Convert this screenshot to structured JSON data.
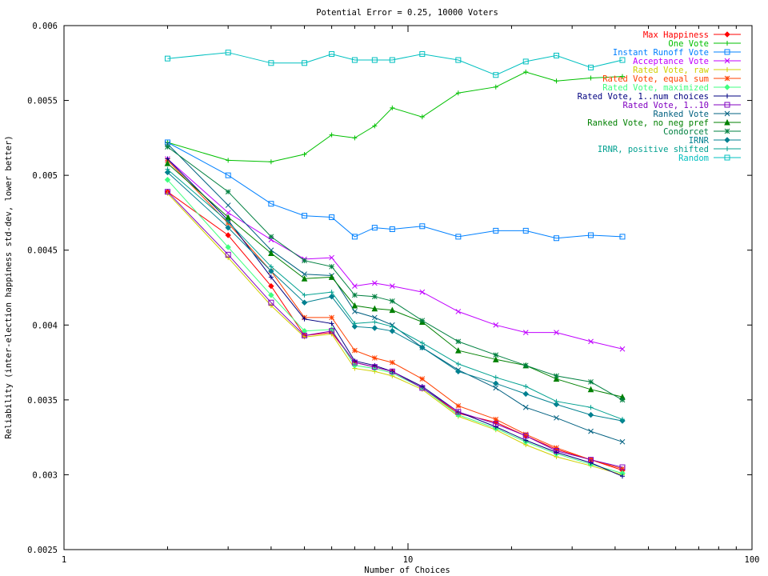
{
  "chart_data": {
    "type": "line",
    "title": "Potential Error = 0.25, 10000 Voters",
    "xlabel": "Number of Choices",
    "ylabel": "Reliability (inter-election happiness std-dev, lower better)",
    "x_scale": "log",
    "xlim": [
      1,
      100
    ],
    "ylim": [
      0.0025,
      0.006
    ],
    "x_ticks": [
      1,
      10,
      100
    ],
    "x_tick_labels": [
      "1",
      "10",
      "100"
    ],
    "y_ticks": [
      0.0025,
      0.003,
      0.0035,
      0.004,
      0.0045,
      0.005,
      0.0055,
      0.006
    ],
    "y_tick_labels": [
      "0.0025",
      "0.003",
      "0.0035",
      "0.004",
      "0.0045",
      "0.005",
      "0.0055",
      "0.006"
    ],
    "grid": false,
    "legend_position": "top-right",
    "x": [
      2,
      3,
      4,
      5,
      6,
      7,
      8,
      9,
      11,
      14,
      18,
      22,
      27,
      34,
      42
    ],
    "series": [
      {
        "name": "Max Happiness",
        "color": "#ff0000",
        "marker": "diamond",
        "values": [
          0.00489,
          0.0046,
          0.00426,
          0.00393,
          0.00395,
          0.00375,
          0.00372,
          0.00369,
          0.00358,
          0.00341,
          0.00335,
          0.00326,
          0.00317,
          0.0031,
          0.00303
        ]
      },
      {
        "name": "One Vote",
        "color": "#00c000",
        "marker": "plus",
        "values": [
          0.00522,
          0.0051,
          0.00509,
          0.00514,
          0.00527,
          0.00525,
          0.00533,
          0.00545,
          0.00539,
          0.00555,
          0.00559,
          0.00569,
          0.00563,
          0.00565,
          0.00566
        ]
      },
      {
        "name": "Instant Runoff Vote",
        "color": "#0080ff",
        "marker": "square",
        "values": [
          0.00522,
          0.005,
          0.00481,
          0.00473,
          0.00472,
          0.00459,
          0.00465,
          0.00464,
          0.00466,
          0.00459,
          0.00463,
          0.00463,
          0.00458,
          0.0046,
          0.00459
        ]
      },
      {
        "name": "Acceptance Vote",
        "color": "#c000ff",
        "marker": "x",
        "values": [
          0.00511,
          0.00475,
          0.00457,
          0.00444,
          0.00445,
          0.00426,
          0.00428,
          0.00426,
          0.00422,
          0.00409,
          0.004,
          0.00395,
          0.00395,
          0.00389,
          0.00384
        ]
      },
      {
        "name": "Rated Vote, raw",
        "color": "#d0d000",
        "marker": "plus",
        "values": [
          0.00488,
          0.00445,
          0.00413,
          0.00392,
          0.00394,
          0.00371,
          0.00369,
          0.00366,
          0.00357,
          0.00339,
          0.0033,
          0.0032,
          0.00312,
          0.00306,
          0.003
        ]
      },
      {
        "name": "Rated Vote, equal sum",
        "color": "#ff4000",
        "marker": "star",
        "values": [
          0.0051,
          0.00468,
          0.00436,
          0.00405,
          0.00405,
          0.00383,
          0.00378,
          0.00375,
          0.00364,
          0.00346,
          0.00337,
          0.00327,
          0.00318,
          0.0031,
          0.00304
        ]
      },
      {
        "name": "Rated Vote, maximized",
        "color": "#40ff80",
        "marker": "diamond",
        "values": [
          0.00497,
          0.00452,
          0.0042,
          0.00396,
          0.00397,
          0.00373,
          0.00371,
          0.00368,
          0.00358,
          0.0034,
          0.00331,
          0.00322,
          0.00314,
          0.00307,
          0.00301
        ]
      },
      {
        "name": "Rated Vote, 1..num choices",
        "color": "#000080",
        "marker": "plus",
        "values": [
          0.00511,
          0.0047,
          0.00432,
          0.00404,
          0.00401,
          0.00376,
          0.00373,
          0.00369,
          0.00359,
          0.00342,
          0.00332,
          0.00323,
          0.00315,
          0.00308,
          0.00299
        ]
      },
      {
        "name": "Rated Vote, 1..10",
        "color": "#8000c0",
        "marker": "square",
        "values": [
          0.00489,
          0.00447,
          0.00415,
          0.00393,
          0.00396,
          0.00375,
          0.00372,
          0.00369,
          0.00358,
          0.00342,
          0.00334,
          0.00326,
          0.00316,
          0.0031,
          0.00305
        ]
      },
      {
        "name": "Ranked Vote",
        "color": "#006080",
        "marker": "x",
        "values": [
          0.00521,
          0.0048,
          0.0045,
          0.00434,
          0.00433,
          0.00409,
          0.00405,
          0.004,
          0.00385,
          0.0037,
          0.00358,
          0.00345,
          0.00338,
          0.00329,
          0.00322
        ]
      },
      {
        "name": "Ranked Vote, no neg pref",
        "color": "#008000",
        "marker": "triangle",
        "values": [
          0.00508,
          0.00472,
          0.00448,
          0.00431,
          0.00432,
          0.00413,
          0.00411,
          0.0041,
          0.00402,
          0.00383,
          0.00377,
          0.00373,
          0.00364,
          0.00357,
          0.00352
        ]
      },
      {
        "name": "Condorcet",
        "color": "#008040",
        "marker": "star",
        "values": [
          0.00519,
          0.00489,
          0.00459,
          0.00443,
          0.00439,
          0.0042,
          0.00419,
          0.00416,
          0.00403,
          0.00389,
          0.0038,
          0.00373,
          0.00366,
          0.00362,
          0.0035
        ]
      },
      {
        "name": "IRNR",
        "color": "#008090",
        "marker": "diamond",
        "values": [
          0.00502,
          0.00465,
          0.00436,
          0.00415,
          0.00419,
          0.00399,
          0.00398,
          0.00396,
          0.00385,
          0.00369,
          0.00361,
          0.00354,
          0.00347,
          0.0034,
          0.00336
        ]
      },
      {
        "name": "IRNR, positive shifted",
        "color": "#00a090",
        "marker": "plus",
        "values": [
          0.00504,
          0.00469,
          0.00439,
          0.0042,
          0.00422,
          0.00401,
          0.00402,
          0.00399,
          0.00388,
          0.00374,
          0.00365,
          0.00359,
          0.00349,
          0.00345,
          0.00337
        ]
      },
      {
        "name": "Random",
        "color": "#00c0c0",
        "marker": "square",
        "values": [
          0.00578,
          0.00582,
          0.00575,
          0.00575,
          0.00581,
          0.00577,
          0.00577,
          0.00577,
          0.00581,
          0.00577,
          0.00567,
          0.00576,
          0.0058,
          0.00572,
          0.00577
        ]
      }
    ]
  }
}
